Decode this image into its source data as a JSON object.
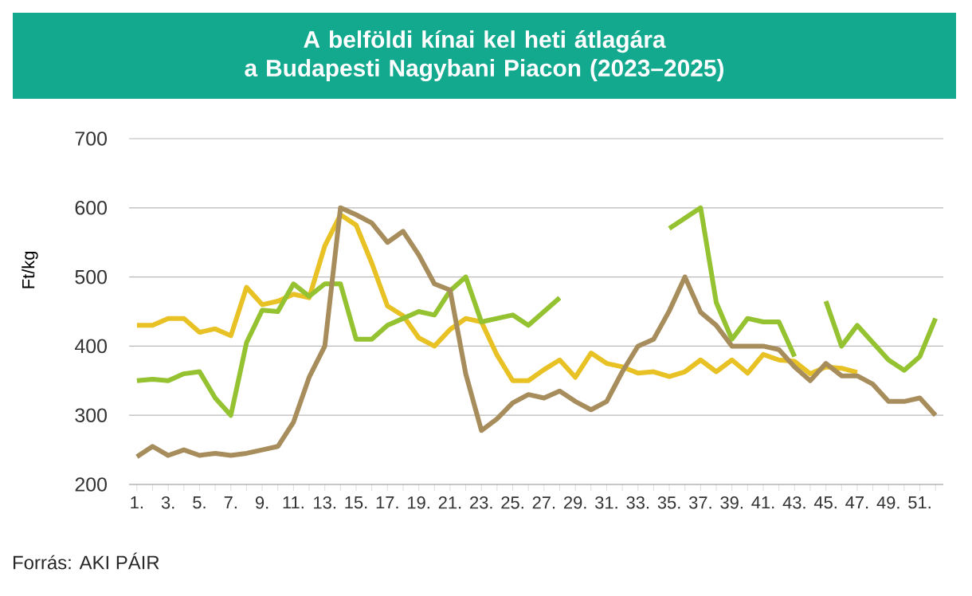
{
  "chart_data": {
    "type": "line",
    "title": "A belföldi kínai kel heti átlagára\na Budapesti Nagybani Piacon (2023–2025)",
    "ylabel": "Ft/kg",
    "annotations": [
      "Forrás: AKI PÁIR"
    ],
    "categories": [
      "1.",
      null,
      "3.",
      null,
      "5.",
      null,
      "7.",
      null,
      "9.",
      null,
      "11.",
      null,
      "13.",
      null,
      "15.",
      null,
      "17.",
      null,
      "19.",
      null,
      "21.",
      null,
      "23.",
      null,
      "25.",
      null,
      "27.",
      null,
      "29.",
      null,
      "31.",
      null,
      "33.",
      null,
      "35.",
      null,
      "37.",
      null,
      "39.",
      null,
      "41.",
      null,
      "43.",
      null,
      "45.",
      null,
      "47.",
      null,
      "49.",
      null,
      "51.",
      null
    ],
    "series": [
      {
        "color": "#e8c224",
        "values": [
          430,
          430,
          440,
          440,
          420,
          425,
          415,
          485,
          460,
          465,
          475,
          470,
          545,
          590,
          575,
          520,
          458,
          444,
          412,
          400,
          424,
          440,
          435,
          387,
          350,
          350,
          366,
          380,
          355,
          390,
          375,
          370,
          361,
          363,
          356,
          363,
          380,
          363,
          380,
          361,
          388,
          380,
          378,
          360,
          370,
          368,
          362,
          null,
          null,
          null,
          null,
          null
        ]
      },
      {
        "color": "#95c231",
        "values": [
          350,
          352,
          350,
          360,
          363,
          325,
          300,
          405,
          452,
          450,
          490,
          472,
          490,
          490,
          410,
          410,
          430,
          440,
          450,
          445,
          480,
          500,
          435,
          440,
          445,
          430,
          450,
          470,
          null,
          null,
          null,
          null,
          null,
          null,
          570,
          585,
          600,
          463,
          410,
          440,
          435,
          435,
          385,
          null,
          465,
          400,
          430,
          405,
          380,
          365,
          385,
          440
        ]
      },
      {
        "color": "#a88d5c",
        "values": [
          240,
          255,
          242,
          250,
          242,
          245,
          242,
          245,
          250,
          255,
          290,
          355,
          400,
          600,
          590,
          578,
          550,
          566,
          532,
          490,
          481,
          360,
          278,
          295,
          318,
          330,
          325,
          335,
          320,
          308,
          320,
          363,
          400,
          410,
          451,
          500,
          449,
          430,
          400,
          400,
          400,
          395,
          370,
          350,
          375,
          357,
          357,
          345,
          320,
          320,
          325,
          300
        ]
      }
    ],
    "ylim": [
      200,
      700
    ],
    "yticks": [
      200,
      300,
      400,
      500,
      600,
      700
    ],
    "grid": "y",
    "line_style": "solid",
    "marker": "none"
  }
}
